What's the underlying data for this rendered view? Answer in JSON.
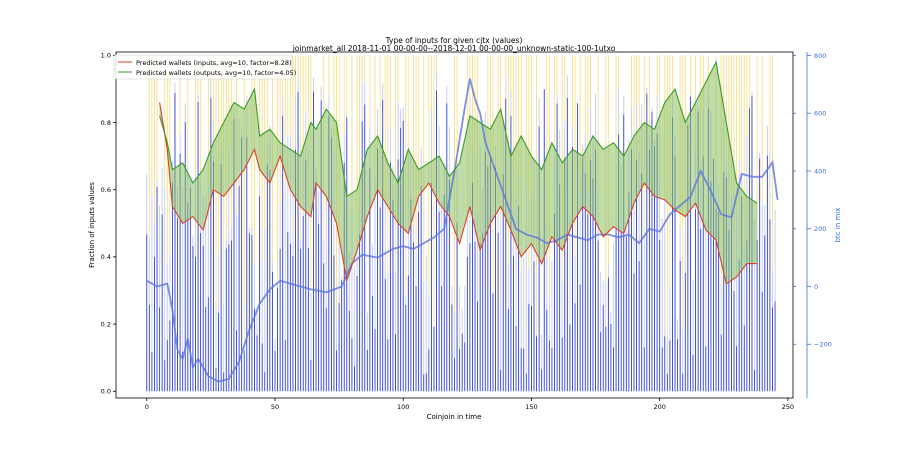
{
  "chart_data": {
    "type": "line",
    "title": "Type of inputs for given cjtx (values)",
    "subtitle": "joinmarket_all 2018-11-01 00-00-00--2018-12-01 00-00-00_unknown-static-100-1utxo",
    "xlabel": "Coinjoin in time",
    "ylabel": "Fraction of inputs values",
    "y2label": "btc in mix",
    "xlim": [
      -12,
      252
    ],
    "ylim": [
      -0.02,
      1.01
    ],
    "y2lim": [
      -386,
      812
    ],
    "xticks": [
      0,
      50,
      100,
      150,
      200,
      250
    ],
    "yticks": [
      0.0,
      0.2,
      0.4,
      0.6,
      0.8,
      1.0
    ],
    "y2ticks": [
      -200,
      0,
      200,
      400,
      600,
      800
    ],
    "y2_tick_labels": [
      "−200",
      "0",
      "200",
      "400",
      "600",
      "800"
    ],
    "grid": false,
    "legend_position": "top-left",
    "colors": {
      "inputs_line": "#d9412b",
      "outputs_line": "#3a9a2a",
      "fill": "#8dc060",
      "bars_blue": "#2e3fd4",
      "bars_yellow": "#f5d76e",
      "bars_lightblue": "#aab4f0",
      "mix_line": "#5b74de",
      "right_axis": "#3b6fd8"
    },
    "series": [
      {
        "name": "Predicted wallets (inputs, avg=10, factor=8.28)",
        "x": [
          5,
          8,
          10,
          14,
          18,
          22,
          26,
          30,
          34,
          38,
          42,
          44,
          48,
          52,
          56,
          60,
          64,
          66,
          70,
          74,
          78,
          82,
          86,
          90,
          94,
          98,
          102,
          106,
          110,
          114,
          118,
          122,
          126,
          130,
          134,
          138,
          142,
          146,
          150,
          154,
          158,
          162,
          166,
          170,
          174,
          178,
          182,
          186,
          190,
          194,
          198,
          202,
          206,
          210,
          214,
          218,
          222,
          226,
          230,
          234,
          238
        ],
        "values": [
          0.86,
          0.72,
          0.55,
          0.5,
          0.52,
          0.48,
          0.6,
          0.58,
          0.62,
          0.66,
          0.72,
          0.66,
          0.62,
          0.7,
          0.6,
          0.55,
          0.52,
          0.62,
          0.58,
          0.5,
          0.33,
          0.42,
          0.52,
          0.6,
          0.55,
          0.5,
          0.47,
          0.58,
          0.62,
          0.56,
          0.52,
          0.44,
          0.55,
          0.42,
          0.5,
          0.55,
          0.48,
          0.4,
          0.44,
          0.38,
          0.46,
          0.42,
          0.5,
          0.55,
          0.52,
          0.46,
          0.49,
          0.47,
          0.56,
          0.62,
          0.58,
          0.57,
          0.54,
          0.52,
          0.56,
          0.48,
          0.45,
          0.32,
          0.34,
          0.38,
          0.38
        ]
      },
      {
        "name": "Predicted wallets (outputs, avg=10, factor=4.05)",
        "x": [
          5,
          8,
          10,
          14,
          18,
          22,
          26,
          30,
          34,
          38,
          42,
          44,
          48,
          52,
          56,
          60,
          64,
          66,
          70,
          74,
          78,
          82,
          86,
          90,
          94,
          98,
          102,
          106,
          110,
          114,
          118,
          122,
          126,
          130,
          134,
          138,
          142,
          146,
          150,
          154,
          158,
          162,
          166,
          170,
          174,
          178,
          182,
          186,
          190,
          194,
          198,
          202,
          206,
          210,
          214,
          218,
          222,
          226,
          230,
          234,
          238
        ],
        "values": [
          0.82,
          0.74,
          0.66,
          0.68,
          0.62,
          0.66,
          0.74,
          0.8,
          0.86,
          0.84,
          0.9,
          0.76,
          0.78,
          0.74,
          0.72,
          0.7,
          0.8,
          0.78,
          0.84,
          0.8,
          0.58,
          0.6,
          0.72,
          0.76,
          0.68,
          0.62,
          0.72,
          0.66,
          0.68,
          0.7,
          0.64,
          0.68,
          0.82,
          0.8,
          0.78,
          0.84,
          0.7,
          0.76,
          0.7,
          0.66,
          0.74,
          0.68,
          0.72,
          0.7,
          0.76,
          0.72,
          0.74,
          0.7,
          0.76,
          0.8,
          0.78,
          0.86,
          0.9,
          0.8,
          0.86,
          0.92,
          0.98,
          0.8,
          0.62,
          0.58,
          0.56
        ]
      },
      {
        "name": "btc in mix",
        "axis": "right",
        "x": [
          0,
          4,
          8,
          10,
          12,
          14,
          16,
          18,
          20,
          24,
          28,
          32,
          34,
          36,
          40,
          44,
          48,
          52,
          56,
          60,
          64,
          70,
          76,
          80,
          84,
          90,
          96,
          100,
          104,
          108,
          112,
          116,
          120,
          124,
          126,
          128,
          130,
          132,
          136,
          140,
          144,
          148,
          152,
          156,
          160,
          164,
          168,
          172,
          176,
          180,
          184,
          188,
          192,
          196,
          200,
          204,
          208,
          212,
          216,
          220,
          224,
          228,
          232,
          236,
          240,
          244,
          246
        ],
        "values": [
          20,
          0,
          10,
          -80,
          -220,
          -250,
          -180,
          -280,
          -250,
          -310,
          -330,
          -320,
          -290,
          -260,
          -150,
          -60,
          -10,
          20,
          10,
          0,
          -10,
          -20,
          0,
          80,
          110,
          100,
          130,
          140,
          130,
          150,
          170,
          200,
          400,
          620,
          720,
          650,
          600,
          500,
          400,
          300,
          200,
          180,
          170,
          150,
          160,
          180,
          170,
          160,
          180,
          180,
          170,
          180,
          150,
          200,
          190,
          250,
          280,
          310,
          400,
          330,
          250,
          240,
          390,
          380,
          380,
          430,
          300
        ]
      }
    ]
  }
}
